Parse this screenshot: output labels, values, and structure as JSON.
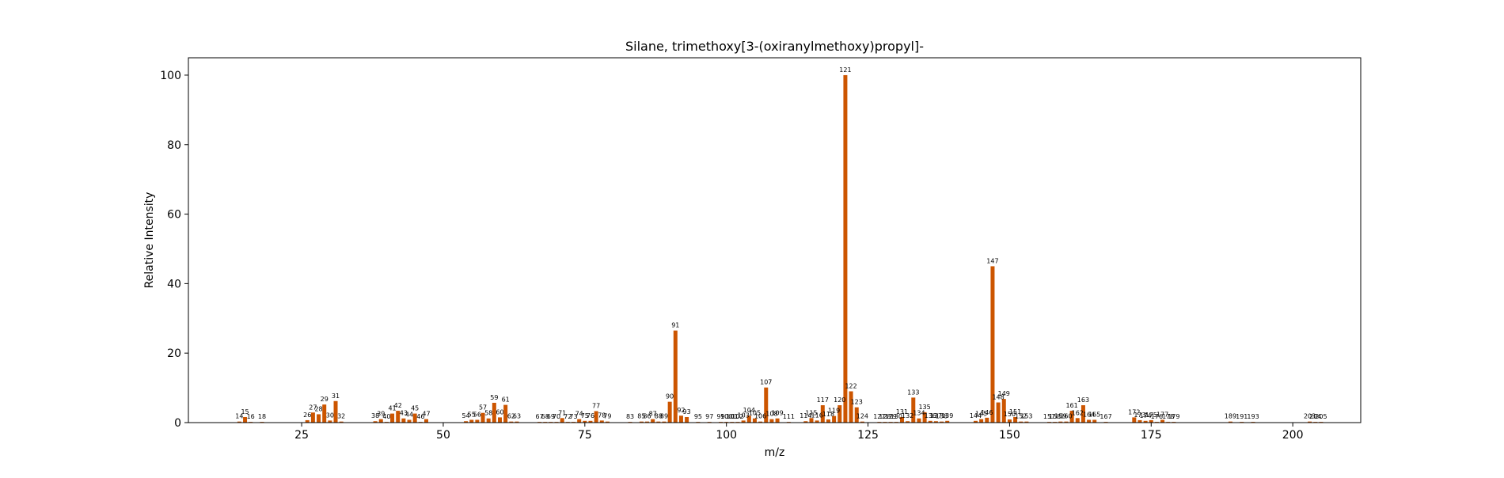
{
  "chart_data": {
    "type": "bar",
    "title": "Silane, trimethoxy[3-(oxiranylmethoxy)propyl]-",
    "xlabel": "m/z",
    "ylabel": "Relative Intensity",
    "xlim": [
      5,
      212
    ],
    "ylim": [
      0,
      105
    ],
    "xticks": [
      25,
      50,
      75,
      100,
      125,
      150,
      175,
      200
    ],
    "yticks": [
      0,
      20,
      40,
      60,
      80,
      100
    ],
    "grid": false,
    "legend": "none",
    "bar_color": "#cc5500",
    "points": [
      {
        "x": 14,
        "y": 0.3
      },
      {
        "x": 15,
        "y": 1.6
      },
      {
        "x": 16,
        "y": 0.2
      },
      {
        "x": 18,
        "y": 0.2
      },
      {
        "x": 26,
        "y": 0.7
      },
      {
        "x": 27,
        "y": 2.9
      },
      {
        "x": 28,
        "y": 2.4
      },
      {
        "x": 29,
        "y": 5.2
      },
      {
        "x": 30,
        "y": 0.6
      },
      {
        "x": 31,
        "y": 6.2
      },
      {
        "x": 32,
        "y": 0.3
      },
      {
        "x": 38,
        "y": 0.4
      },
      {
        "x": 39,
        "y": 1.0
      },
      {
        "x": 40,
        "y": 0.2
      },
      {
        "x": 41,
        "y": 2.6
      },
      {
        "x": 42,
        "y": 3.4
      },
      {
        "x": 43,
        "y": 1.2
      },
      {
        "x": 44,
        "y": 0.8
      },
      {
        "x": 45,
        "y": 2.6
      },
      {
        "x": 46,
        "y": 0.2
      },
      {
        "x": 47,
        "y": 1.0
      },
      {
        "x": 54,
        "y": 0.4
      },
      {
        "x": 55,
        "y": 0.8
      },
      {
        "x": 56,
        "y": 0.8
      },
      {
        "x": 57,
        "y": 2.8
      },
      {
        "x": 58,
        "y": 1.2
      },
      {
        "x": 59,
        "y": 5.7
      },
      {
        "x": 60,
        "y": 1.5
      },
      {
        "x": 61,
        "y": 5.1
      },
      {
        "x": 62,
        "y": 0.3
      },
      {
        "x": 63,
        "y": 0.3
      },
      {
        "x": 67,
        "y": 0.2
      },
      {
        "x": 68,
        "y": 0.2
      },
      {
        "x": 69,
        "y": 0.2
      },
      {
        "x": 70,
        "y": 0.2
      },
      {
        "x": 71,
        "y": 1.3
      },
      {
        "x": 72,
        "y": 0.2
      },
      {
        "x": 73,
        "y": 0.2
      },
      {
        "x": 74,
        "y": 1.0
      },
      {
        "x": 75,
        "y": 0.5
      },
      {
        "x": 76,
        "y": 0.5
      },
      {
        "x": 77,
        "y": 3.3
      },
      {
        "x": 78,
        "y": 0.6
      },
      {
        "x": 79,
        "y": 0.3
      },
      {
        "x": 83,
        "y": 0.2
      },
      {
        "x": 85,
        "y": 0.3
      },
      {
        "x": 86,
        "y": 0.3
      },
      {
        "x": 87,
        "y": 1.0
      },
      {
        "x": 88,
        "y": 0.3
      },
      {
        "x": 89,
        "y": 0.3
      },
      {
        "x": 90,
        "y": 6.0
      },
      {
        "x": 91,
        "y": 26.5
      },
      {
        "x": 92,
        "y": 2.0
      },
      {
        "x": 93,
        "y": 1.6
      },
      {
        "x": 95,
        "y": 0.2
      },
      {
        "x": 97,
        "y": 0.2
      },
      {
        "x": 99,
        "y": 0.2
      },
      {
        "x": 100,
        "y": 0.2
      },
      {
        "x": 101,
        "y": 0.2
      },
      {
        "x": 102,
        "y": 0.2
      },
      {
        "x": 103,
        "y": 0.6
      },
      {
        "x": 104,
        "y": 2.0
      },
      {
        "x": 105,
        "y": 1.2
      },
      {
        "x": 106,
        "y": 0.3
      },
      {
        "x": 107,
        "y": 10.1
      },
      {
        "x": 108,
        "y": 1.0
      },
      {
        "x": 109,
        "y": 1.2
      },
      {
        "x": 111,
        "y": 0.2
      },
      {
        "x": 114,
        "y": 0.4
      },
      {
        "x": 115,
        "y": 1.3
      },
      {
        "x": 116,
        "y": 0.6
      },
      {
        "x": 117,
        "y": 5.0
      },
      {
        "x": 118,
        "y": 0.9
      },
      {
        "x": 119,
        "y": 1.9
      },
      {
        "x": 120,
        "y": 5.0
      },
      {
        "x": 121,
        "y": 100.0
      },
      {
        "x": 122,
        "y": 9.0
      },
      {
        "x": 123,
        "y": 4.4
      },
      {
        "x": 124,
        "y": 0.3
      },
      {
        "x": 127,
        "y": 0.2
      },
      {
        "x": 128,
        "y": 0.2
      },
      {
        "x": 129,
        "y": 0.2
      },
      {
        "x": 130,
        "y": 0.2
      },
      {
        "x": 131,
        "y": 1.6
      },
      {
        "x": 132,
        "y": 0.4
      },
      {
        "x": 133,
        "y": 7.2
      },
      {
        "x": 134,
        "y": 1.2
      },
      {
        "x": 135,
        "y": 3.0
      },
      {
        "x": 136,
        "y": 0.5
      },
      {
        "x": 137,
        "y": 0.4
      },
      {
        "x": 138,
        "y": 0.3
      },
      {
        "x": 139,
        "y": 0.5
      },
      {
        "x": 144,
        "y": 0.5
      },
      {
        "x": 145,
        "y": 1.0
      },
      {
        "x": 146,
        "y": 1.4
      },
      {
        "x": 147,
        "y": 45.0
      },
      {
        "x": 148,
        "y": 5.8
      },
      {
        "x": 149,
        "y": 6.8
      },
      {
        "x": 150,
        "y": 0.9
      },
      {
        "x": 151,
        "y": 1.6
      },
      {
        "x": 152,
        "y": 0.3
      },
      {
        "x": 153,
        "y": 0.3
      },
      {
        "x": 157,
        "y": 0.2
      },
      {
        "x": 158,
        "y": 0.2
      },
      {
        "x": 159,
        "y": 0.3
      },
      {
        "x": 160,
        "y": 0.3
      },
      {
        "x": 161,
        "y": 3.4
      },
      {
        "x": 162,
        "y": 1.3
      },
      {
        "x": 163,
        "y": 5.0
      },
      {
        "x": 164,
        "y": 0.8
      },
      {
        "x": 165,
        "y": 0.8
      },
      {
        "x": 167,
        "y": 0.2
      },
      {
        "x": 172,
        "y": 1.5
      },
      {
        "x": 173,
        "y": 0.7
      },
      {
        "x": 174,
        "y": 0.5
      },
      {
        "x": 175,
        "y": 0.7
      },
      {
        "x": 176,
        "y": 0.2
      },
      {
        "x": 177,
        "y": 0.8
      },
      {
        "x": 178,
        "y": 0.2
      },
      {
        "x": 179,
        "y": 0.2
      },
      {
        "x": 189,
        "y": 0.3
      },
      {
        "x": 191,
        "y": 0.2
      },
      {
        "x": 193,
        "y": 0.2
      },
      {
        "x": 203,
        "y": 0.3
      },
      {
        "x": 204,
        "y": 0.2
      },
      {
        "x": 205,
        "y": 0.2
      }
    ]
  }
}
